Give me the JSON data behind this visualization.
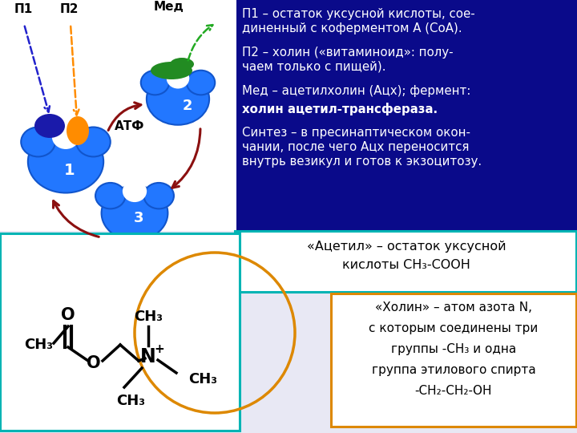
{
  "dark_blue_bg": "#0a0a8a",
  "light_bg": "#e8e8f4",
  "white": "#ffffff",
  "teal_border": "#00b4b4",
  "orange_border": "#dd8800",
  "enzyme_blue": "#2277ff",
  "enzyme_edge": "#1155cc",
  "p1_dark": "#1a1aaa",
  "p2_orange": "#FF8C00",
  "med_green": "#228B22",
  "arrow_dark_red": "#8B1010",
  "dashed_blue": "#2222cc",
  "green_arrow": "#22aa22",
  "orange_arrow": "#dd8800",
  "text_white": "#ffffff",
  "text_black": "#000000",
  "right_text_lines": [
    "П1 – остаток уксусной кислоты, сое-",
    "диненный с коферментом А (СоА).",
    "П2 – холин («витаминоид»: полу-",
    "чаем только с пищей).",
    "Мед – ацетилхолин (Ацх); фермент:",
    "холин ацетил-трансфераза.",
    "Синтез – в пресинаптическом окон-",
    "чании, после чего Ацх переносится",
    "внутрь везикул и готов к экзоцитозу."
  ],
  "bold_line_idx": 5,
  "acetil_line1": "«Ацетил» – остаток уксусной",
  "acetil_line2": "кислоты СН₃-СООН",
  "holin_line1": "«Холин» – атом азота N,",
  "holin_line2": "с которым соединены три",
  "holin_line3": "группы -СН₃ и одна",
  "holin_line4": "группа этилового спирта",
  "holin_line5": "-СН₂-СН₂-ОН"
}
